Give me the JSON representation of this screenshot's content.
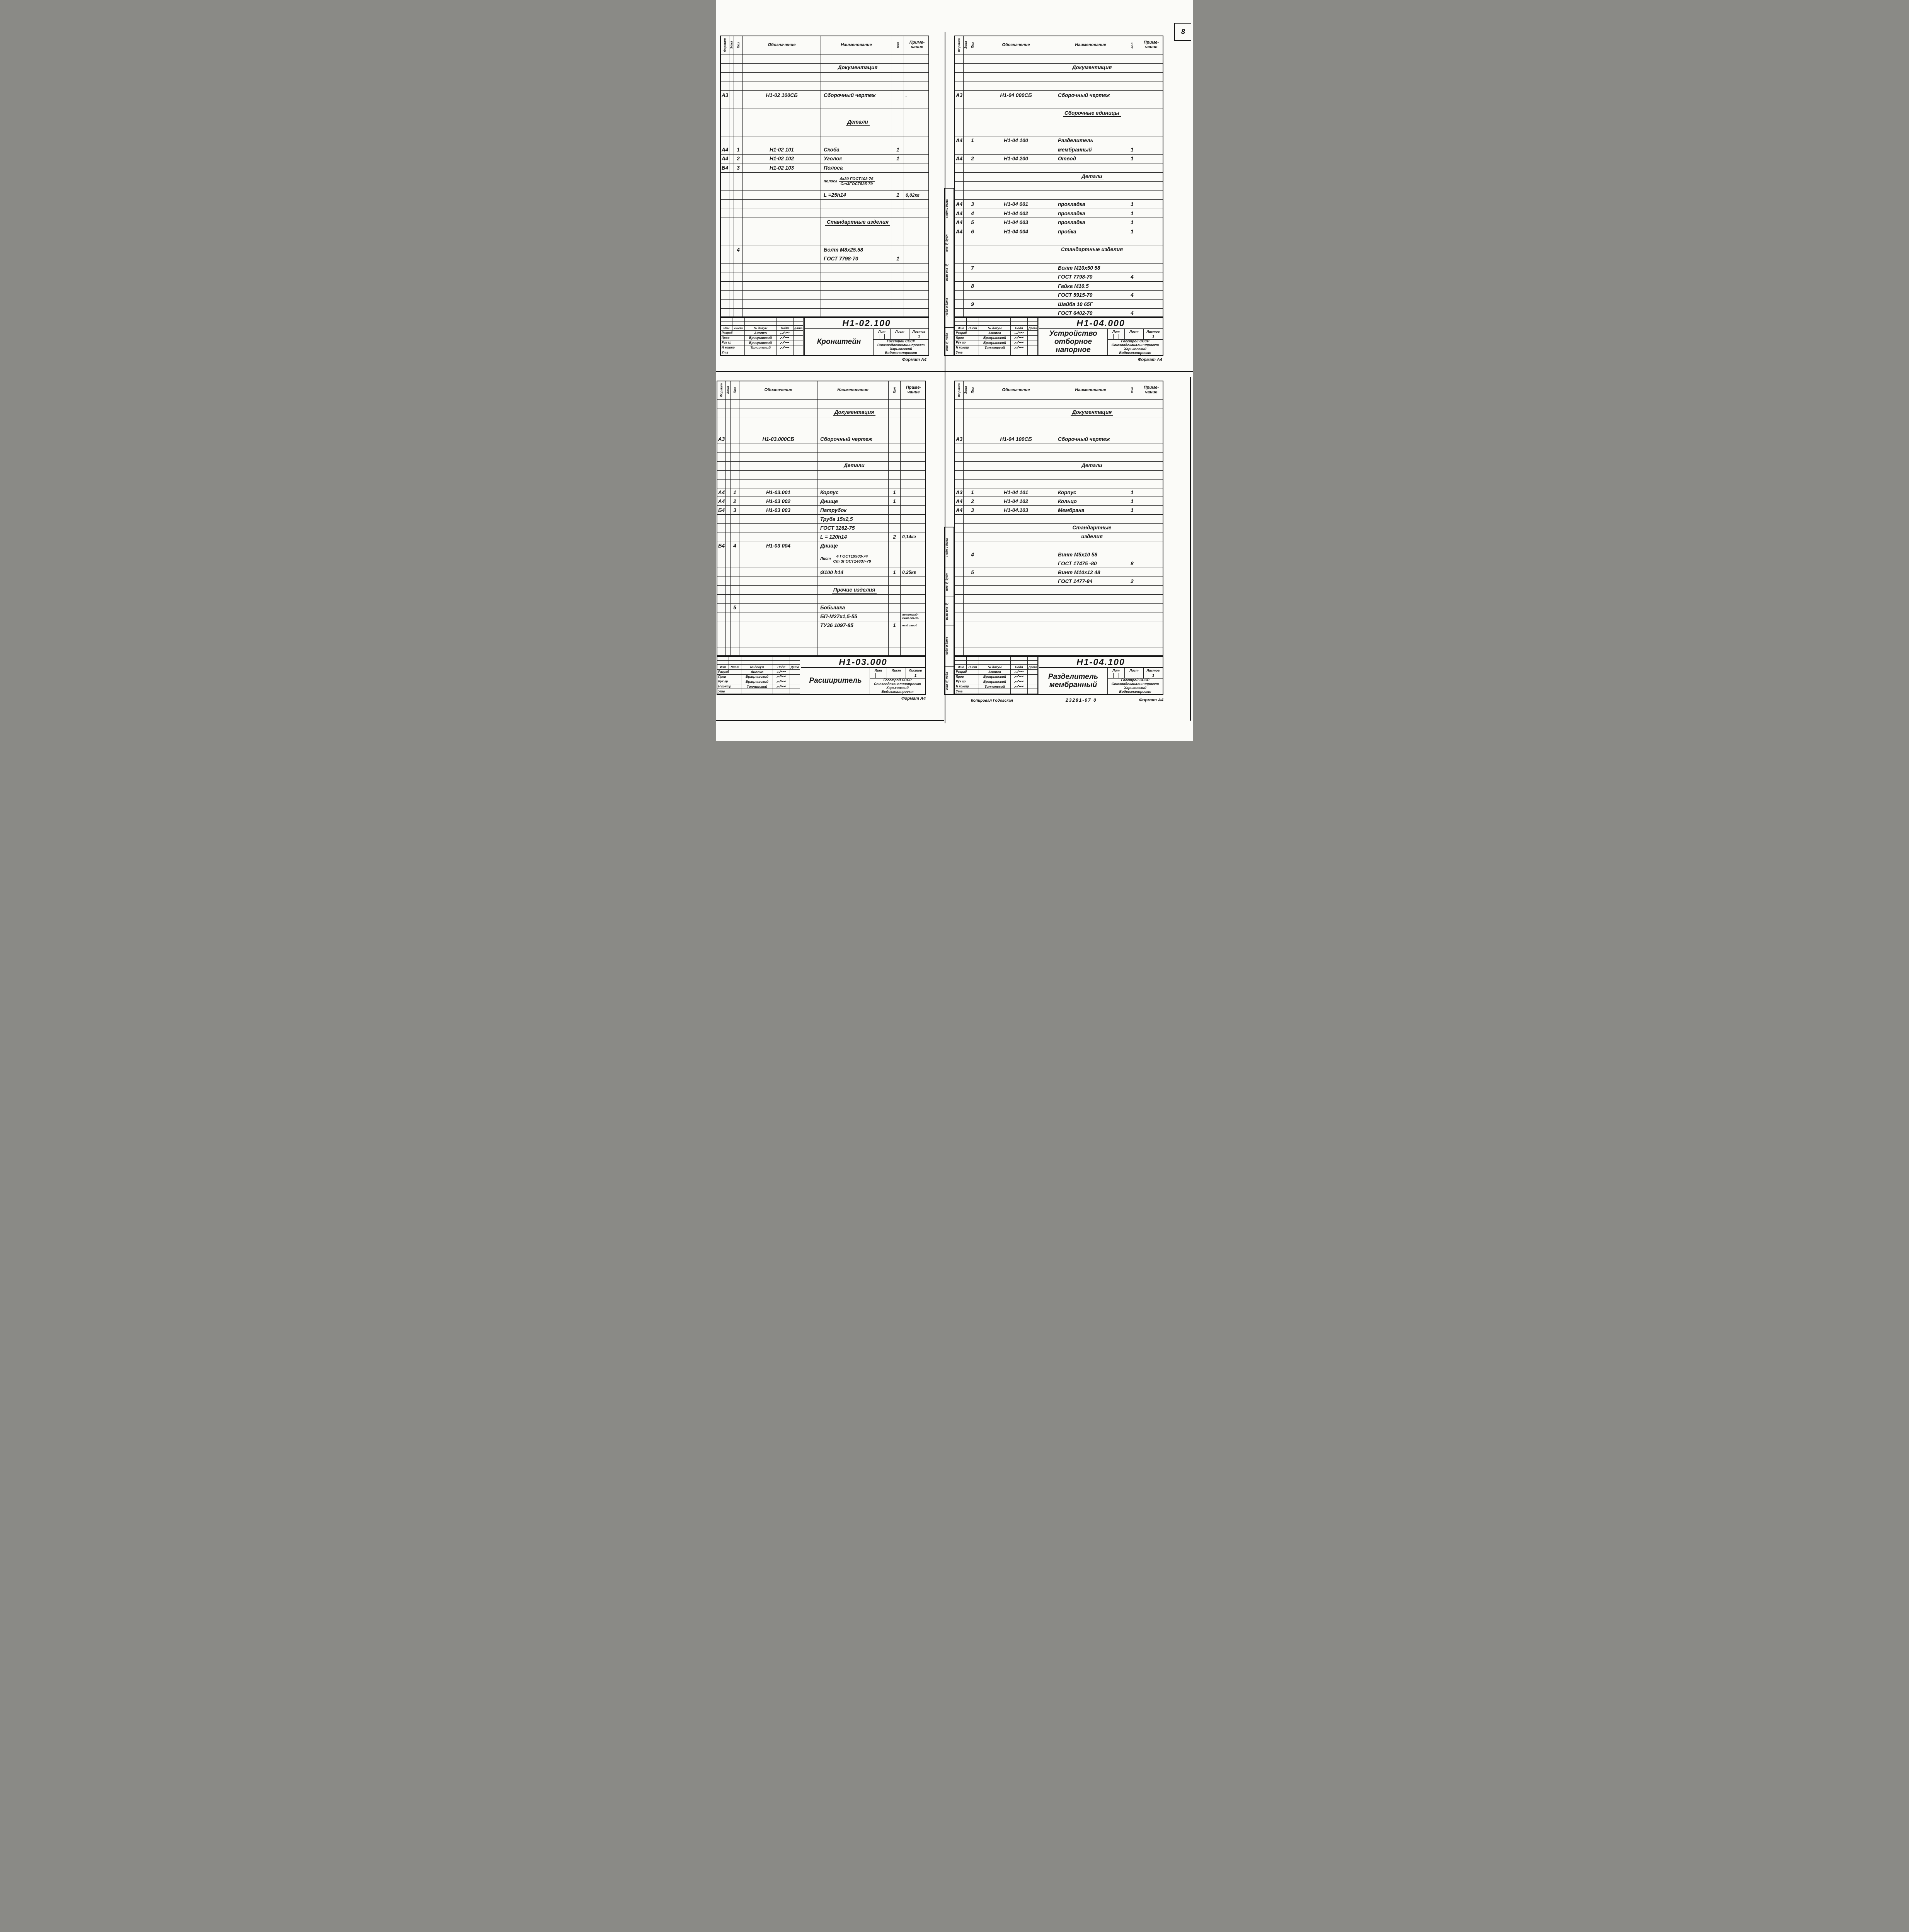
{
  "page": {
    "number": "8",
    "copied_label": "Копировал Годовская",
    "stamp": "23281-07 0",
    "format_note": "Формат А4"
  },
  "labels": {
    "format": "Формат",
    "zone": "Зона",
    "pos": "Поз",
    "designation": "Обозначение",
    "name": "Наименование",
    "note_line1": "Приме-",
    "note_line2": "чание",
    "sidebar": [
      "Подп и дата",
      "Инв № дубл",
      "Взам инв №",
      "Подп и дата",
      "Инв № подл"
    ],
    "tb": {
      "izm": "Изм",
      "list": "Лист",
      "doc_no": "№ докум",
      "sign": "Подп",
      "date": "Дата",
      "razrab": "Разраб",
      "prov": "Пров",
      "ruk": "Рук гр",
      "nkontr": "Н контр",
      "utv": "Утв",
      "lit": "Лит",
      "sheet": "Лист",
      "sheets": "Листов"
    }
  },
  "quadrants": [
    {
      "id": "h1-02-100",
      "qty_label": "Кол",
      "doc_number": "Н1-02.100",
      "title_lines": [
        "Кронштейн"
      ],
      "sheets_value": "1",
      "people": [
        {
          "role": "razrab",
          "name": "Анопко",
          "sig": true
        },
        {
          "role": "prov",
          "name": "Брацлавский",
          "sig": true
        },
        {
          "role": "ruk",
          "name": "Брацлавский",
          "sig": true
        },
        {
          "role": "nkontr",
          "name": "Толчинский",
          "sig": true
        },
        {
          "role": "utv",
          "name": "",
          "sig": false
        }
      ],
      "org_lines": [
        "Госстрой СССР",
        "Союзводоканалниипроект",
        "Харьковский",
        "Водоканалпроект"
      ],
      "rows": [
        {},
        {
          "n": "Документация",
          "t": "sec"
        },
        {},
        {},
        {
          "f": "А3",
          "d": "Н1-02 100СБ",
          "n": "Сборочный чертеж",
          "note": "."
        },
        {},
        {},
        {
          "n": "Детали",
          "t": "sec"
        },
        {},
        {},
        {
          "f": "А4",
          "p": "1",
          "d": "Н1-02 101",
          "n": "Скоба",
          "q": "1"
        },
        {
          "f": "А4",
          "p": "2",
          "d": "Н1-02 102",
          "n": "Уголок",
          "q": "1"
        },
        {
          "f": "Б4",
          "p": "3",
          "d": "Н1-02 103",
          "n": "Полоса"
        },
        {
          "t": "frac",
          "pre": "полоса",
          "top": "4х30 ГОСТ103-76",
          "bot": "Ст3ГОСТ535-79",
          "h": 2
        },
        {
          "n": "L =25h14",
          "q": "1",
          "note": "0,02кг"
        },
        {},
        {},
        {
          "n": "Стандартные изделия",
          "t": "sec"
        },
        {},
        {},
        {
          "p": "4",
          "n": "Болт М8х25.58"
        },
        {
          "n": "ГОСТ 7798-70",
          "q": "1"
        },
        {},
        {},
        {},
        {},
        {},
        {}
      ]
    },
    {
      "id": "h1-04-000",
      "qty_label": "Кол.",
      "doc_number": "Н1-04.000",
      "title_lines": [
        "Устройство",
        "отборное напорное"
      ],
      "sheets_value": "1",
      "sidebar": true,
      "people": [
        {
          "role": "razrab",
          "name": "Анопко",
          "sig": true
        },
        {
          "role": "prov",
          "name": "Брацлавский",
          "sig": true
        },
        {
          "role": "ruk",
          "name": "Брацлавский",
          "sig": true
        },
        {
          "role": "nkontr",
          "name": "Толчинский",
          "sig": true
        },
        {
          "role": "utv",
          "name": "",
          "sig": false
        }
      ],
      "org_lines": [
        "Госстрой СССР",
        "Союзводоканалниипроект",
        "Харьковский",
        "Водоканалпроект"
      ],
      "rows": [
        {},
        {
          "n": "Документация",
          "t": "sec"
        },
        {},
        {},
        {
          "f": "А3",
          "d": "Н1-04 000СБ",
          "n": "Сборочный чертеж"
        },
        {},
        {
          "n": "Сборочные единицы",
          "t": "sec"
        },
        {},
        {},
        {
          "f": "А4",
          "p": "1",
          "d": "Н1-04 100",
          "n": "Разделитель"
        },
        {
          "n": "мембранный",
          "q": "1"
        },
        {
          "f": "А4",
          "p": "2",
          "d": "Н1-04 200",
          "n": "Отвод",
          "q": "1"
        },
        {},
        {
          "n": "Детали",
          "t": "sec"
        },
        {},
        {},
        {
          "f": "А4",
          "p": "3",
          "d": "Н1-04 001",
          "n": "прокладка",
          "q": "1"
        },
        {
          "f": "А4",
          "p": "4",
          "d": "Н1-04 002",
          "n": "прокладка",
          "q": "1"
        },
        {
          "f": "А4",
          "p": "5",
          "d": "Н1-04 003",
          "n": "прокладка",
          "q": "1"
        },
        {
          "f": "А4",
          "p": "6",
          "d": "Н1-04 004",
          "n": "пробка",
          "q": "1"
        },
        {},
        {
          "n": "Стандартные изделия",
          "t": "sec"
        },
        {},
        {
          "p": "7",
          "n": "Болт М10х50 58"
        },
        {
          "n": "ГОСТ 7798-70",
          "q": "4"
        },
        {
          "p": "8",
          "n": "Гайка М10.5"
        },
        {
          "n": "ГОСТ 5915-70",
          "q": "4"
        },
        {
          "p": "9",
          "n": "Шайба 10 65Г"
        },
        {
          "n": "ГОСТ 6402-70",
          "q": "4"
        }
      ]
    },
    {
      "id": "h1-03-000",
      "qty_label": "Кол",
      "doc_number": "Н1-03.000",
      "title_lines": [
        "Расширитель"
      ],
      "sheets_value": "1",
      "people": [
        {
          "role": "razrab",
          "name": "Анопко",
          "sig": true
        },
        {
          "role": "prov",
          "name": "Брацлавский",
          "sig": true
        },
        {
          "role": "ruk",
          "name": "Брацлавский",
          "sig": true
        },
        {
          "role": "nkontr",
          "name": "Толчинский",
          "sig": true
        },
        {
          "role": "utv",
          "name": "",
          "sig": false
        }
      ],
      "org_lines": [
        "Госстрой СССР",
        "Союзводоканалниипроект",
        "Харьковский",
        "Водоканалпроект"
      ],
      "rows": [
        {},
        {
          "n": "Документация",
          "t": "sec"
        },
        {},
        {},
        {
          "f": "А3",
          "d": "Н1-03.000СБ",
          "n": "Сборочный чертеж"
        },
        {},
        {},
        {
          "n": "Детали",
          "t": "sec"
        },
        {},
        {},
        {
          "f": "А4",
          "p": "1",
          "d": "Н1-03.001",
          "n": "Корпус",
          "q": "1"
        },
        {
          "f": "А4",
          "p": "2",
          "d": "Н1-03 002",
          "n": "Днище",
          "q": "1"
        },
        {
          "f": "Б4",
          "p": "3",
          "d": "Н1-03 003",
          "n": "Патрубок"
        },
        {
          "n": "Труба 15х2,5"
        },
        {
          "n": "ГОСТ 3262-75"
        },
        {
          "n": "L = 120h14",
          "q": "2",
          "note": "0,14кг"
        },
        {
          "f": "Б4",
          "p": "4",
          "d": "Н1-03 004",
          "n": "Днище"
        },
        {
          "t": "frac",
          "pre": "Лист",
          "top": "4 ГОСТ19903-74",
          "bot": "Ст 3ГОСТ14637-79",
          "h": 2
        },
        {
          "n": "Ø100 h14",
          "q": "1",
          "note": "0,25кг"
        },
        {},
        {
          "n": "Прочие изделия",
          "t": "sec"
        },
        {},
        {
          "p": "5",
          "n": "Бобышка"
        },
        {
          "n": "БП-М27х1,5-55",
          "note_sm": "ленинград-\nский опыт-"
        },
        {
          "n": "ТУ36 1097-85",
          "q": "1",
          "note_sm": "ный завод"
        },
        {},
        {},
        {}
      ]
    },
    {
      "id": "h1-04-100",
      "qty_label": "Кол",
      "doc_number": "Н1-04.100",
      "title_lines": [
        "Разделитель",
        "мембранный"
      ],
      "sheets_value": "1",
      "sidebar": true,
      "people": [
        {
          "role": "razrab",
          "name": "Анопко",
          "sig": true
        },
        {
          "role": "prov",
          "name": "Брацлавский",
          "sig": true
        },
        {
          "role": "ruk",
          "name": "Брацлавский",
          "sig": true
        },
        {
          "role": "nkontr",
          "name": "Толчинский",
          "sig": true
        },
        {
          "role": "utv",
          "name": "",
          "sig": false
        }
      ],
      "org_lines": [
        "Госстрой СССР",
        "Союзводоканалниипроект",
        "Харьковский",
        "Водоканалпроект"
      ],
      "rows": [
        {},
        {
          "n": "Документация",
          "t": "sec"
        },
        {},
        {},
        {
          "f": "А3",
          "d": "Н1-04 100СБ",
          "n": "Сборочный чертеж"
        },
        {},
        {},
        {
          "n": "Детали",
          "t": "sec"
        },
        {},
        {},
        {
          "f": "А3",
          "p": "1",
          "d": "Н1-04 101",
          "n": "Корпус",
          "q": "1"
        },
        {
          "f": "А4",
          "p": "2",
          "d": "Н1-04 102",
          "n": "Кольцо",
          "q": "1"
        },
        {
          "f": "А4",
          "p": "3",
          "d": "Н1-04.103",
          "n": "Мембрана",
          "q": "1"
        },
        {},
        {
          "n": "Стандартные",
          "t": "sec"
        },
        {
          "n": "изделия",
          "t": "sec"
        },
        {},
        {
          "p": "4",
          "n": "Винт М5х10 58"
        },
        {
          "n": "ГОСТ 17475 -80",
          "q": "8"
        },
        {
          "p": "5",
          "n": "Винт М10х12 48"
        },
        {
          "n": "ГОСТ 1477-84",
          "q": "2"
        },
        {},
        {},
        {},
        {},
        {},
        {},
        {},
        {}
      ]
    }
  ]
}
